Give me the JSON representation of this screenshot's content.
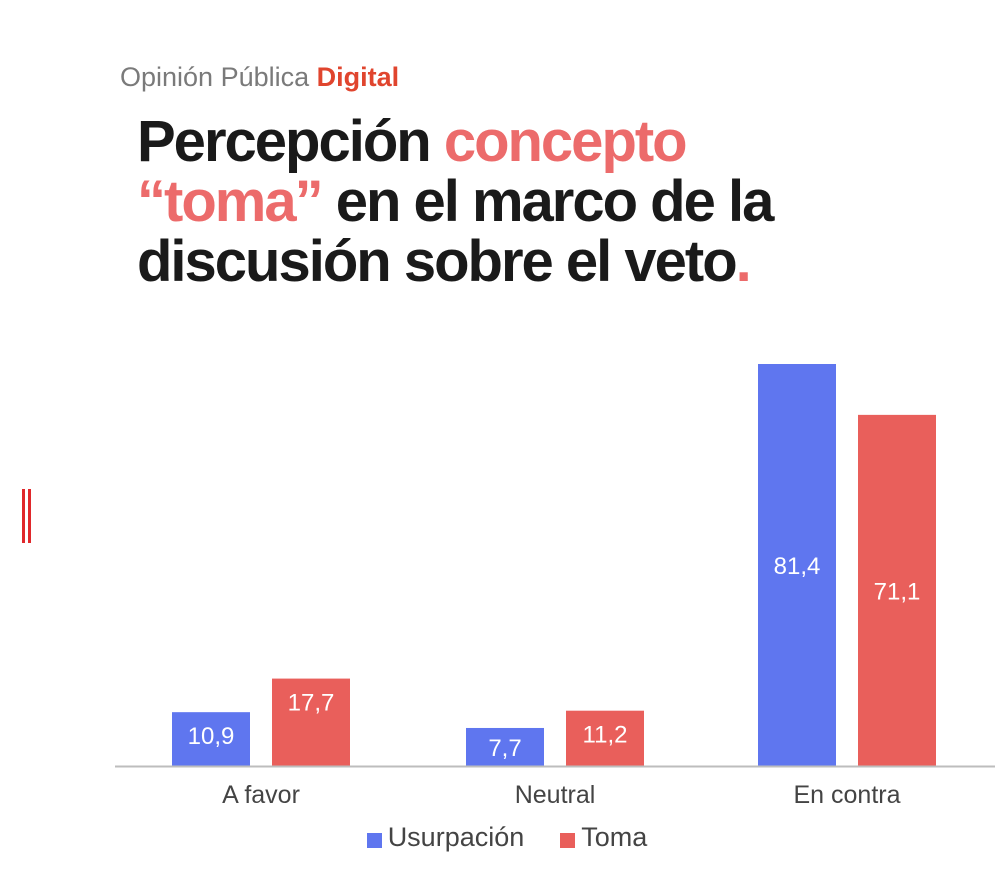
{
  "header": {
    "brand_prefix": "Opinión Pública",
    "brand_accent": "Digital",
    "title_parts": [
      "Percepción ",
      "concepto",
      "“toma”",
      " en el marco de la discusión sobre el veto",
      "."
    ]
  },
  "colors": {
    "usurpacion": "#5f76ef",
    "toma": "#e95f5b",
    "accent": "#e0452e",
    "title_highlight": "#ec6b6b"
  },
  "chart_data": {
    "type": "bar",
    "title": "Percepción concepto “toma” en el marco de la discusión sobre el veto.",
    "categories": [
      "A favor",
      "Neutral",
      "En contra"
    ],
    "series": [
      {
        "name": "Usurpación",
        "values": [
          10.9,
          7.7,
          81.4
        ],
        "labels": [
          "10,9",
          "7,7",
          "81,4"
        ]
      },
      {
        "name": "Toma",
        "values": [
          17.7,
          11.2,
          71.1
        ],
        "labels": [
          "17,7",
          "11,2",
          "71,1"
        ]
      }
    ],
    "ylim": [
      0,
      81.4
    ],
    "xlabel": "",
    "ylabel": "",
    "grid": false,
    "legend": "bottom"
  }
}
